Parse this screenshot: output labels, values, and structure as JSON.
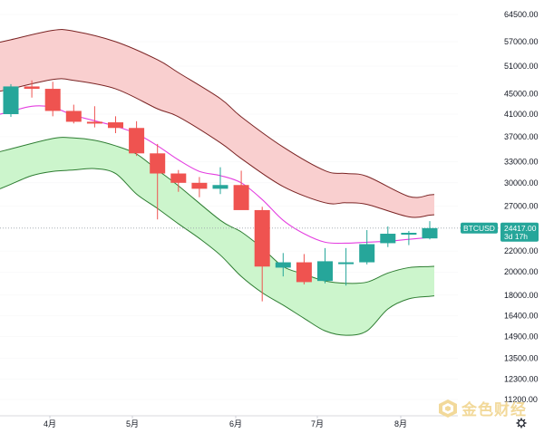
{
  "chart_data": {
    "type": "candlestick",
    "symbol": "BTCUSD",
    "price_tag": "24417.00",
    "countdown": "3d 17h",
    "log_scale": true,
    "ylim": [
      10500,
      72000
    ],
    "y_ticks": [
      "64500.00",
      "57000.00",
      "51000.00",
      "45000.00",
      "41000.00",
      "37000.00",
      "33000.00",
      "30000.00",
      "27000.00",
      "24417.00",
      "22000.00",
      "20000.00",
      "18000.00",
      "16400.00",
      "14900.00",
      "13500.00",
      "12300.00",
      "11200.00"
    ],
    "x_labels": [
      "4月",
      "5月",
      "6月",
      "7月",
      "8月"
    ],
    "current_price": 24417,
    "candles": [
      {
        "o": 41000,
        "h": 47000,
        "l": 40500,
        "c": 46500
      },
      {
        "o": 46500,
        "h": 47800,
        "l": 44200,
        "c": 46000
      },
      {
        "o": 46000,
        "h": 47500,
        "l": 40600,
        "c": 41600
      },
      {
        "o": 41600,
        "h": 42800,
        "l": 39300,
        "c": 39600
      },
      {
        "o": 39600,
        "h": 42500,
        "l": 38600,
        "c": 39500
      },
      {
        "o": 39500,
        "h": 40600,
        "l": 37600,
        "c": 38500
      },
      {
        "o": 38500,
        "h": 39700,
        "l": 33900,
        "c": 34300
      },
      {
        "o": 34300,
        "h": 35800,
        "l": 25400,
        "c": 31300
      },
      {
        "o": 31300,
        "h": 31800,
        "l": 28800,
        "c": 30000
      },
      {
        "o": 30000,
        "h": 30800,
        "l": 28100,
        "c": 29200
      },
      {
        "o": 29200,
        "h": 32200,
        "l": 28500,
        "c": 29700
      },
      {
        "o": 29700,
        "h": 31700,
        "l": 26600,
        "c": 26500
      },
      {
        "o": 26500,
        "h": 26900,
        "l": 17500,
        "c": 20500
      },
      {
        "o": 20400,
        "h": 21800,
        "l": 19600,
        "c": 20900
      },
      {
        "o": 20900,
        "h": 21700,
        "l": 18900,
        "c": 19100
      },
      {
        "o": 19200,
        "h": 22300,
        "l": 19000,
        "c": 21000
      },
      {
        "o": 20800,
        "h": 22300,
        "l": 18800,
        "c": 20900
      },
      {
        "o": 20900,
        "h": 24200,
        "l": 20700,
        "c": 22700
      },
      {
        "o": 22800,
        "h": 24600,
        "l": 22400,
        "c": 23800
      },
      {
        "o": 23700,
        "h": 24100,
        "l": 22600,
        "c": 23900
      },
      {
        "o": 23300,
        "h": 25200,
        "l": 23200,
        "c": 24417
      }
    ],
    "upper_band_top": [
      [
        0,
        57500
      ],
      [
        2,
        60000
      ],
      [
        3,
        59800
      ],
      [
        5,
        57000
      ],
      [
        7,
        52500
      ],
      [
        8,
        49500
      ],
      [
        10,
        44000
      ],
      [
        11,
        40500
      ],
      [
        13,
        35300
      ],
      [
        15,
        31700
      ],
      [
        16,
        31300
      ],
      [
        17,
        30900
      ],
      [
        19,
        28200
      ],
      [
        20,
        28400
      ]
    ],
    "upper_band_bottom": [
      [
        0,
        46000
      ],
      [
        2,
        48000
      ],
      [
        3,
        47800
      ],
      [
        5,
        46000
      ],
      [
        7,
        42000
      ],
      [
        8,
        40500
      ],
      [
        10,
        36000
      ],
      [
        11,
        33500
      ],
      [
        13,
        29500
      ],
      [
        15,
        27400
      ],
      [
        16,
        27400
      ],
      [
        17,
        27200
      ],
      [
        19,
        25700
      ],
      [
        20,
        25900
      ]
    ],
    "mid_line": [
      [
        0,
        41500
      ],
      [
        1,
        42500
      ],
      [
        2,
        42300
      ],
      [
        3,
        40800
      ],
      [
        5,
        38800
      ],
      [
        6,
        37500
      ],
      [
        7,
        35500
      ],
      [
        8,
        33300
      ],
      [
        9,
        31600
      ],
      [
        10,
        31000
      ],
      [
        11,
        30000
      ],
      [
        12,
        27800
      ],
      [
        13,
        25300
      ],
      [
        14,
        23800
      ],
      [
        15,
        22900
      ],
      [
        16,
        22800
      ],
      [
        17,
        22900
      ],
      [
        18,
        23000
      ],
      [
        19,
        23200
      ],
      [
        20,
        23400
      ]
    ],
    "lower_band_top": [
      [
        0,
        35000
      ],
      [
        2,
        36700
      ],
      [
        3,
        36800
      ],
      [
        4,
        36400
      ],
      [
        5,
        35500
      ],
      [
        6,
        34200
      ],
      [
        7,
        31800
      ],
      [
        8,
        29600
      ],
      [
        10,
        25300
      ],
      [
        11,
        24000
      ],
      [
        12,
        22300
      ],
      [
        13,
        20500
      ],
      [
        14,
        19800
      ],
      [
        15,
        19200
      ],
      [
        16,
        19000
      ],
      [
        17,
        19100
      ],
      [
        18,
        19900
      ],
      [
        19,
        20400
      ],
      [
        20,
        20500
      ]
    ],
    "lower_band_bottom": [
      [
        0,
        29800
      ],
      [
        1,
        31000
      ],
      [
        2,
        31600
      ],
      [
        3,
        31800
      ],
      [
        4,
        32000
      ],
      [
        5,
        31300
      ],
      [
        6,
        28500
      ],
      [
        7,
        26700
      ],
      [
        8,
        24900
      ],
      [
        9,
        23300
      ],
      [
        10,
        21600
      ],
      [
        11,
        19600
      ],
      [
        12,
        18200
      ],
      [
        13,
        17200
      ],
      [
        14,
        16200
      ],
      [
        15,
        15300
      ],
      [
        16,
        15000
      ],
      [
        17,
        15300
      ],
      [
        18,
        16900
      ],
      [
        19,
        17700
      ],
      [
        20,
        17900
      ]
    ],
    "colors": {
      "up": "#26a69a",
      "down": "#ef5350",
      "upper_band_line": "#7a2323",
      "upper_band_fill": "#f9cfcf",
      "mid_line": "#e43fe0",
      "lower_band_line": "#2e7d32",
      "lower_band_fill": "#ccf5cc",
      "tag_bg": "#26a69a",
      "grid": "#dfe2e6",
      "price_line": "#9aa2ab"
    },
    "grid": true
  },
  "watermark": {
    "text": "金色财经"
  }
}
